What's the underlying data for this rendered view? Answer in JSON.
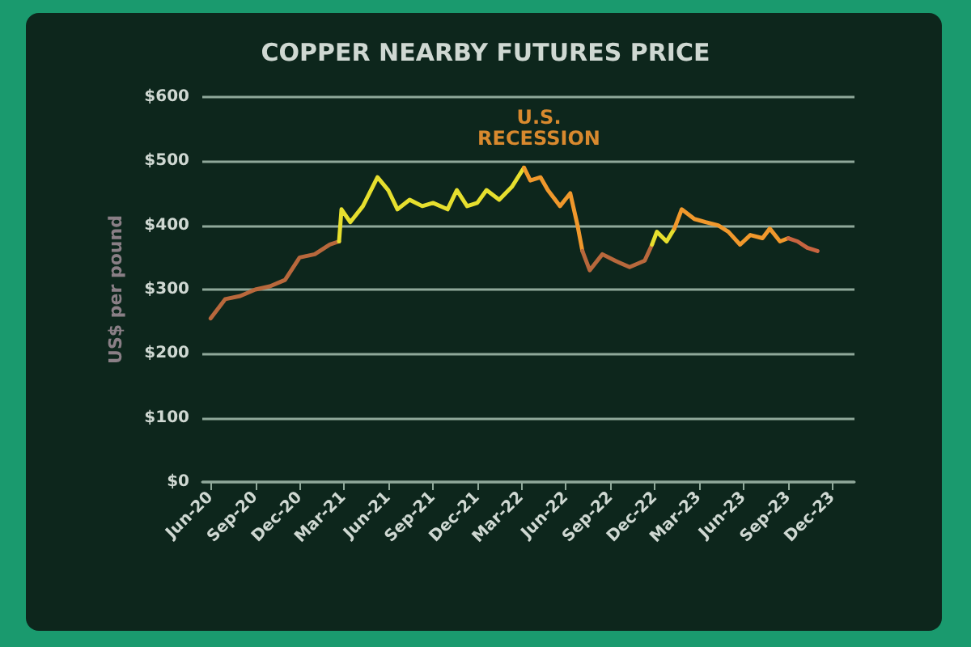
{
  "chart_data": {
    "type": "line",
    "title": "COPPER NEARBY FUTURES PRICE",
    "ylabel": "US$ per pound",
    "xlim": [
      "2020-05-15",
      "2024-01-15"
    ],
    "xticks": [
      {
        "value": "2020-06",
        "label": "Jun-20"
      },
      {
        "value": "2020-09",
        "label": "Sep-20"
      },
      {
        "value": "2020-12",
        "label": "Dec-20"
      },
      {
        "value": "2021-03",
        "label": "Mar-21"
      },
      {
        "value": "2021-06",
        "label": "Jun-21"
      },
      {
        "value": "2021-09",
        "label": "Sep-21"
      },
      {
        "value": "2021-12",
        "label": "Dec-21"
      },
      {
        "value": "2022-03",
        "label": "Mar-22"
      },
      {
        "value": "2022-06",
        "label": "Jun-22"
      },
      {
        "value": "2022-09",
        "label": "Sep-22"
      },
      {
        "value": "2022-12",
        "label": "Dec-22"
      },
      {
        "value": "2023-03",
        "label": "Mar-23"
      },
      {
        "value": "2023-06",
        "label": "Jun-23"
      },
      {
        "value": "2023-09",
        "label": "Sep-23"
      },
      {
        "value": "2023-12",
        "label": "Dec-23"
      }
    ],
    "ylim": [
      0,
      600
    ],
    "yticks": [
      {
        "value": 0,
        "label": "$0"
      },
      {
        "value": 100,
        "label": "$100"
      },
      {
        "value": 200,
        "label": "$200"
      },
      {
        "value": 300,
        "label": "$300"
      },
      {
        "value": 400,
        "label": "$400"
      },
      {
        "value": 500,
        "label": "$500"
      },
      {
        "value": 600,
        "label": "$600"
      }
    ],
    "grid": "y",
    "marker": "none",
    "line_style": "solid",
    "annotations": [
      "U.S. RECESSION"
    ],
    "series": [
      {
        "color": "#b8683c",
        "x": [
          "2020-06-01",
          "2020-07-01",
          "2020-08-01",
          "2020-09-01",
          "2020-10-01",
          "2020-11-01",
          "2020-12-01",
          "2021-01-01",
          "2021-02-01",
          "2021-02-20"
        ],
        "values": [
          255,
          285,
          290,
          300,
          305,
          315,
          350,
          355,
          370,
          375
        ]
      },
      {
        "color": "#e6df2e",
        "x": [
          "2021-02-20",
          "2021-02-25",
          "2021-03-15",
          "2021-04-10",
          "2021-05-10",
          "2021-06-01",
          "2021-06-20",
          "2021-07-15",
          "2021-08-10",
          "2021-09-01",
          "2021-10-01",
          "2021-10-20",
          "2021-11-10",
          "2021-12-01",
          "2021-12-20",
          "2022-01-15",
          "2022-02-10",
          "2022-03-07"
        ],
        "values": [
          375,
          425,
          405,
          430,
          475,
          455,
          425,
          440,
          430,
          435,
          425,
          455,
          430,
          435,
          455,
          440,
          460,
          490
        ]
      },
      {
        "color": "#f0982c",
        "x": [
          "2022-03-07",
          "2022-03-20",
          "2022-04-10",
          "2022-04-25",
          "2022-05-20",
          "2022-06-10",
          "2022-06-25",
          "2022-07-05"
        ],
        "values": [
          490,
          470,
          475,
          455,
          430,
          450,
          400,
          360
        ]
      },
      {
        "color": "#b8683c",
        "x": [
          "2022-07-05",
          "2022-07-20",
          "2022-08-15",
          "2022-09-10",
          "2022-10-10",
          "2022-11-10",
          "2022-11-25"
        ],
        "values": [
          360,
          330,
          355,
          345,
          335,
          345,
          370
        ]
      },
      {
        "color": "#e6df2e",
        "x": [
          "2022-11-25",
          "2022-12-05",
          "2022-12-25",
          "2023-01-10"
        ],
        "values": [
          370,
          390,
          375,
          395
        ]
      },
      {
        "color": "#f0982c",
        "x": [
          "2023-01-10",
          "2023-01-25",
          "2023-02-20",
          "2023-03-15",
          "2023-04-10",
          "2023-05-01",
          "2023-05-25",
          "2023-06-15",
          "2023-07-10",
          "2023-07-25",
          "2023-08-15",
          "2023-09-01"
        ],
        "values": [
          395,
          425,
          410,
          405,
          400,
          390,
          370,
          385,
          380,
          395,
          375,
          380
        ]
      },
      {
        "color": "#c86440",
        "x": [
          "2023-09-01",
          "2023-09-20",
          "2023-10-10",
          "2023-10-31"
        ],
        "values": [
          380,
          375,
          365,
          360
        ]
      }
    ]
  }
}
